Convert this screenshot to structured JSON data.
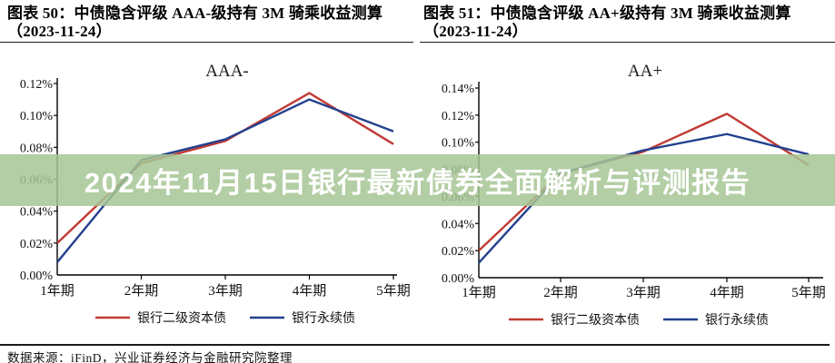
{
  "figure_headers": {
    "left_line1": "图表 50：中债隐含评级 AAA-级持有 3M 骑乘收益测算",
    "left_line2": "（2023-11-24）",
    "right_line1": "图表 51：中债隐含评级 AA+级持有 3M 骑乘收益测算",
    "right_line2": "（2023-11-24）"
  },
  "banner": {
    "text": "2024年11月15日银行最新债券全面解析与评测报告",
    "bg_color": "#a6c694",
    "text_color": "#ffffff"
  },
  "footer": {
    "source_text": "数据来源：iFinD，兴业证券经济与金融研究院整理"
  },
  "chart_data": [
    {
      "type": "line",
      "title": "AAA-",
      "categories": [
        "1年期",
        "2年期",
        "3年期",
        "4年期",
        "5年期"
      ],
      "series": [
        {
          "name": "银行二级资本债",
          "color": "#c03a33",
          "values": [
            0.02,
            0.07,
            0.084,
            0.114,
            0.082
          ]
        },
        {
          "name": "银行永续债",
          "color": "#24408e",
          "values": [
            0.008,
            0.072,
            0.085,
            0.11,
            0.09
          ]
        }
      ],
      "ylabel_unit": "%",
      "ylim": [
        0.0,
        0.12
      ],
      "ytick_step": 0.02,
      "grid": false,
      "legend_position": "bottom"
    },
    {
      "type": "line",
      "title": "AA+",
      "categories": [
        "1年期",
        "2年期",
        "3年期",
        "4年期",
        "5年期"
      ],
      "series": [
        {
          "name": "银行二级资本债",
          "color": "#c03a33",
          "values": [
            0.02,
            0.077,
            0.093,
            0.121,
            0.083
          ]
        },
        {
          "name": "银行永续债",
          "color": "#24408e",
          "values": [
            0.011,
            0.077,
            0.094,
            0.106,
            0.091
          ]
        }
      ],
      "ylabel_unit": "%",
      "ylim": [
        0.0,
        0.14
      ],
      "ytick_step": 0.02,
      "grid": false,
      "legend_position": "bottom"
    }
  ]
}
